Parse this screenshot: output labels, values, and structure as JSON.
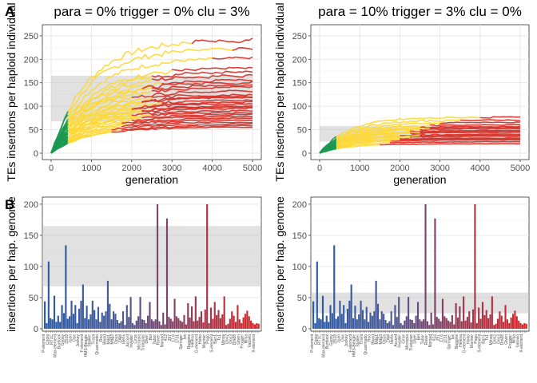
{
  "panel_labels": [
    "A",
    "B"
  ],
  "chart_data": [
    {
      "type": "line",
      "title": "para = 0% trigger = 0% clu = 3%",
      "xlabel": "generation",
      "ylabel": "TEs insertions per haploid individual",
      "xlim": [
        0,
        5000
      ],
      "ylim": [
        0,
        260
      ],
      "xticks": [
        0,
        1000,
        2000,
        3000,
        4000,
        5000
      ],
      "yticks": [
        0,
        50,
        100,
        150,
        200,
        250
      ],
      "band": [
        68,
        165
      ],
      "grid": true,
      "phase_colors": {
        "rapid": "#1a9850",
        "shotgun": "#fdd835",
        "inactive": "#d73027"
      },
      "trajectories": [
        {
          "final": 240,
          "switch": 0.7
        },
        {
          "final": 222,
          "switch": 0.9
        },
        {
          "final": 201,
          "switch": 0.8
        },
        {
          "final": 165,
          "switch": 0.5
        },
        {
          "final": 155,
          "switch": 0.55
        },
        {
          "final": 150,
          "switch": 0.45
        },
        {
          "final": 140,
          "switch": 0.5
        },
        {
          "final": 132,
          "switch": 0.4
        },
        {
          "final": 125,
          "switch": 0.5
        },
        {
          "final": 118,
          "switch": 0.45
        },
        {
          "final": 112,
          "switch": 0.55
        },
        {
          "final": 105,
          "switch": 0.4
        },
        {
          "final": 100,
          "switch": 0.5
        },
        {
          "final": 95,
          "switch": 0.45
        },
        {
          "final": 90,
          "switch": 0.4
        },
        {
          "final": 86,
          "switch": 0.5
        },
        {
          "final": 82,
          "switch": 0.45
        },
        {
          "final": 78,
          "switch": 0.4
        },
        {
          "final": 74,
          "switch": 0.35
        },
        {
          "final": 70,
          "switch": 0.4
        },
        {
          "final": 66,
          "switch": 0.35
        },
        {
          "final": 62,
          "switch": 0.3
        },
        {
          "final": 58,
          "switch": 0.35
        },
        {
          "final": 55,
          "switch": 0.3
        },
        {
          "final": 180,
          "switch": 0.6
        },
        {
          "final": 172,
          "switch": 0.5
        },
        {
          "final": 145,
          "switch": 0.5
        },
        {
          "final": 120,
          "switch": 0.45
        },
        {
          "final": 108,
          "switch": 0.4
        },
        {
          "final": 98,
          "switch": 0.45
        }
      ]
    },
    {
      "type": "line",
      "title": "para = 10% trigger = 3% clu = 0%",
      "xlabel": "generation",
      "ylabel": "TEs insertions per haploid individual",
      "xlim": [
        0,
        5000
      ],
      "ylim": [
        0,
        260
      ],
      "xticks": [
        0,
        1000,
        2000,
        3000,
        4000,
        5000
      ],
      "yticks": [
        0,
        50,
        100,
        150,
        200,
        250
      ],
      "band": [
        25,
        58
      ],
      "grid": true,
      "phase_colors": {
        "rapid": "#1a9850",
        "shotgun": "#fdd835",
        "inactive": "#d73027"
      },
      "trajectories": [
        {
          "final": 76,
          "switch": 0.8
        },
        {
          "final": 70,
          "switch": 0.7
        },
        {
          "final": 65,
          "switch": 0.6
        },
        {
          "final": 60,
          "switch": 0.55
        },
        {
          "final": 56,
          "switch": 0.5
        },
        {
          "final": 52,
          "switch": 0.5
        },
        {
          "final": 48,
          "switch": 0.45
        },
        {
          "final": 44,
          "switch": 0.45
        },
        {
          "final": 40,
          "switch": 0.4
        },
        {
          "final": 36,
          "switch": 0.45
        },
        {
          "final": 32,
          "switch": 0.4
        },
        {
          "final": 28,
          "switch": 0.35
        },
        {
          "final": 24,
          "switch": 0.35
        },
        {
          "final": 20,
          "switch": 0.3
        },
        {
          "final": 46,
          "switch": 0.5
        },
        {
          "final": 38,
          "switch": 0.5
        },
        {
          "final": 54,
          "switch": 0.55
        },
        {
          "final": 30,
          "switch": 0.4
        }
      ]
    },
    {
      "type": "bar",
      "title": "",
      "xlabel": "",
      "ylabel": "insertions per hap. genome",
      "ylim": [
        0,
        205
      ],
      "yticks": [
        0,
        50,
        100,
        150,
        200
      ],
      "band": [
        68,
        165
      ],
      "grid": true,
      "values": [
        44,
        9,
        108,
        17,
        15,
        53,
        11,
        21,
        11,
        38,
        25,
        134,
        16,
        20,
        45,
        24,
        38,
        9,
        32,
        45,
        71,
        17,
        37,
        15,
        23,
        45,
        30,
        15,
        35,
        11,
        26,
        21,
        28,
        77,
        40,
        15,
        28,
        24,
        14,
        9,
        12,
        28,
        6,
        38,
        19,
        51,
        9,
        6,
        13,
        20,
        51,
        15,
        14,
        9,
        21,
        43,
        15,
        12,
        15,
        200,
        12,
        6,
        26,
        7,
        177,
        19,
        16,
        12,
        48,
        20,
        17,
        13,
        11,
        22,
        7,
        41,
        18,
        36,
        12,
        52,
        13,
        19,
        28,
        10,
        31,
        200,
        9,
        34,
        16,
        43,
        22,
        30,
        17,
        23,
        52,
        6,
        8,
        16,
        28,
        21,
        11,
        38,
        15,
        9,
        18,
        24,
        29,
        20,
        13,
        9,
        7,
        9,
        8
      ]
    },
    {
      "type": "bar",
      "title": "",
      "xlabel": "",
      "ylabel": "insertions per hap. genome",
      "ylim": [
        0,
        205
      ],
      "yticks": [
        0,
        50,
        100,
        150,
        200
      ],
      "band": [
        25,
        58
      ],
      "grid": true,
      "values": [
        44,
        9,
        108,
        17,
        15,
        53,
        11,
        21,
        11,
        38,
        25,
        134,
        16,
        20,
        45,
        24,
        38,
        9,
        32,
        45,
        71,
        17,
        37,
        15,
        23,
        45,
        30,
        15,
        35,
        11,
        26,
        21,
        28,
        77,
        40,
        15,
        28,
        24,
        14,
        9,
        12,
        28,
        6,
        38,
        19,
        51,
        9,
        6,
        13,
        20,
        51,
        15,
        14,
        9,
        21,
        43,
        15,
        12,
        15,
        200,
        12,
        6,
        26,
        7,
        177,
        19,
        16,
        12,
        48,
        20,
        17,
        13,
        11,
        22,
        7,
        41,
        18,
        36,
        12,
        52,
        13,
        19,
        28,
        10,
        31,
        200,
        9,
        34,
        16,
        43,
        22,
        30,
        17,
        23,
        52,
        6,
        8,
        16,
        28,
        21,
        11,
        38,
        15,
        9,
        18,
        24,
        29,
        20,
        13,
        9,
        7,
        9,
        8
      ]
    }
  ],
  "family_labels": [
    "P-element",
    "Copia",
    "RT1C",
    "Max-element",
    "Burdock",
    "Gypsy",
    "3S18",
    "Juan",
    "Doc",
    "Jockey",
    "F-element",
    "HMS-Beagle",
    "Stalker",
    "Tirant",
    "Quasimodo",
    "Roo",
    "Blood",
    "Mdg1",
    "Mdg3",
    "Opus",
    "ZAM",
    "Idefix",
    "Accord",
    "Invader",
    "Circe",
    "Micropia",
    "Transpac",
    "Diver",
    "Bel",
    "Tabor",
    "Rover",
    "Nomad",
    "412",
    "297",
    "17.6",
    "1731",
    "Springer",
    "Ivk",
    "Baggins",
    "Helena",
    "G-element",
    "Hobo",
    "Mariner",
    "Pogo",
    "S-element",
    "Bari1",
    "Tc1",
    "Minos",
    "Doc2",
    "Doc3",
    "Dm88",
    "Gtwin",
    "Frogger",
    "Ninja",
    "Vatovio",
    "X-element"
  ]
}
